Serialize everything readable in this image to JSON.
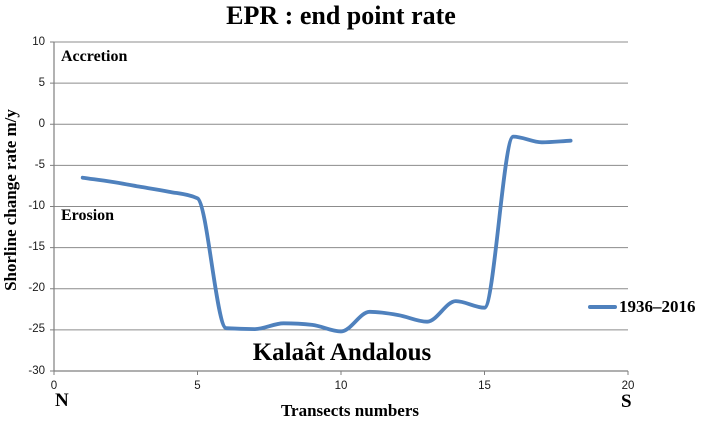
{
  "title": "EPR : end point rate",
  "axes": {
    "y_title": "Shorline change rate m/y",
    "x_title": "Transects numbers"
  },
  "annotations": {
    "accretion": "Accretion",
    "erosion": "Erosion",
    "place": "Kalaât Andalous",
    "north": "N",
    "south": "S"
  },
  "legend": {
    "label": "1936–2016"
  },
  "colors": {
    "series": "#4F81BD",
    "gridline": "#8c8c8c",
    "axis": "#7f7f7f"
  },
  "chart_data": {
    "type": "line",
    "title": "EPR : end point rate",
    "xlabel": "Transects numbers",
    "ylabel": "Shorline change rate m/y",
    "xlim": [
      0,
      20
    ],
    "ylim": [
      -30,
      10
    ],
    "x_ticks": [
      0,
      5,
      10,
      15,
      20
    ],
    "y_ticks": [
      10,
      5,
      0,
      -5,
      -10,
      -15,
      -20,
      -25,
      -30
    ],
    "grid": "horizontal-only",
    "smoothed_line": true,
    "legend_position": "right",
    "series": [
      {
        "name": "1936–2016",
        "color": "#4F81BD",
        "x": [
          1,
          2,
          3,
          4,
          5,
          6,
          7,
          8,
          9,
          10,
          11,
          12,
          13,
          14,
          15,
          16,
          17,
          18
        ],
        "y": [
          -6.5,
          -7.0,
          -7.6,
          -8.2,
          -9.0,
          -24.8,
          -24.9,
          -24.2,
          -24.4,
          -25.2,
          -22.8,
          -23.2,
          -24.0,
          -21.5,
          -22.3,
          -1.5,
          -2.2,
          -2.0
        ]
      }
    ]
  }
}
